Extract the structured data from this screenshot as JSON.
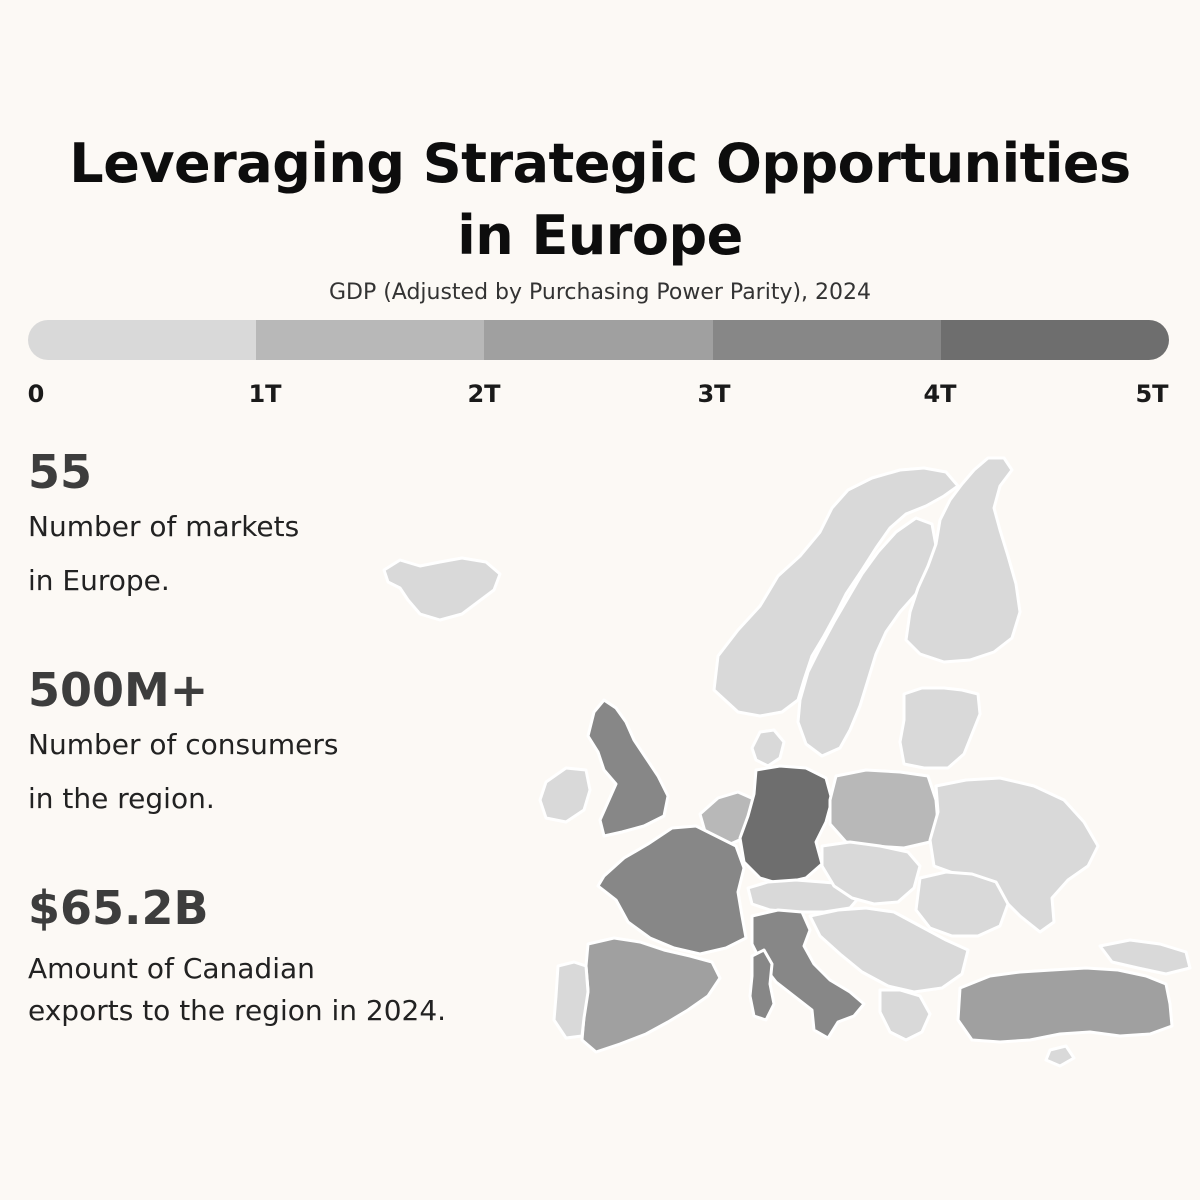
{
  "title": {
    "line1": "Leveraging Strategic Opportunities",
    "line2": "in Europe"
  },
  "subtitle": "GDP (Adjusted by Purchasing Power Parity), 2024",
  "legend": {
    "colors": [
      "#d9d9d9",
      "#b8b8b8",
      "#a0a0a0",
      "#878787",
      "#6e6e6e"
    ],
    "ticks": [
      "0",
      "1T",
      "2T",
      "3T",
      "4T",
      "5T"
    ]
  },
  "stats": [
    {
      "value": "55",
      "line1": "Number of markets",
      "line2": "in Europe."
    },
    {
      "value": "500M+",
      "line1": "Number of consumers",
      "line2": "in the region."
    },
    {
      "value": "$65.2B",
      "line1": "Amount of Canadian",
      "line2": "exports to the region in 2024."
    }
  ],
  "map": {
    "countries": [
      {
        "name": "iceland",
        "tier": 0
      },
      {
        "name": "norway",
        "tier": 0
      },
      {
        "name": "sweden",
        "tier": 0
      },
      {
        "name": "finland",
        "tier": 0
      },
      {
        "name": "denmark",
        "tier": 0
      },
      {
        "name": "baltics",
        "tier": 0
      },
      {
        "name": "ireland",
        "tier": 0
      },
      {
        "name": "united-kingdom",
        "tier": 3
      },
      {
        "name": "benelux",
        "tier": 1
      },
      {
        "name": "germany",
        "tier": 4
      },
      {
        "name": "poland",
        "tier": 1
      },
      {
        "name": "france",
        "tier": 3
      },
      {
        "name": "switzerland-austria",
        "tier": 0
      },
      {
        "name": "czech-slovakia-hungary",
        "tier": 0
      },
      {
        "name": "ukraine-belarus",
        "tier": 0
      },
      {
        "name": "romania-moldova",
        "tier": 0
      },
      {
        "name": "balkans",
        "tier": 0
      },
      {
        "name": "greece",
        "tier": 0
      },
      {
        "name": "italy",
        "tier": 3
      },
      {
        "name": "sardinia-corsica",
        "tier": 3
      },
      {
        "name": "spain",
        "tier": 2
      },
      {
        "name": "portugal",
        "tier": 0
      },
      {
        "name": "turkey",
        "tier": 2
      },
      {
        "name": "caucasus",
        "tier": 0
      },
      {
        "name": "cyprus",
        "tier": 0
      }
    ]
  }
}
